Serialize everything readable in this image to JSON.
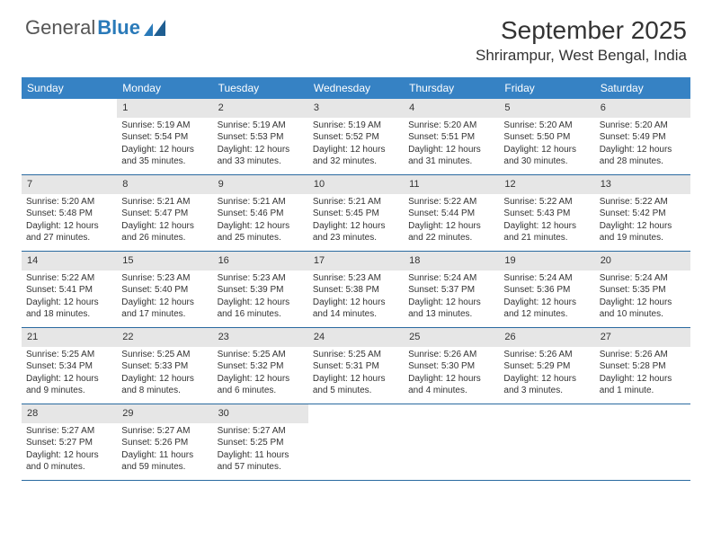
{
  "logo": {
    "text1": "General",
    "text2": "Blue"
  },
  "title": "September 2025",
  "location": "Shrirampur, West Bengal, India",
  "colors": {
    "header_bg": "#3682c4",
    "header_text": "#ffffff",
    "daynum_bg": "#e6e6e6",
    "border": "#2a6aa0",
    "text": "#333333",
    "logo_blue": "#2a7ab9"
  },
  "typography": {
    "title_fontsize": 28,
    "location_fontsize": 17,
    "dayhead_fontsize": 12,
    "daynum_fontsize": 11,
    "detail_fontsize": 10
  },
  "day_labels": [
    "Sunday",
    "Monday",
    "Tuesday",
    "Wednesday",
    "Thursday",
    "Friday",
    "Saturday"
  ],
  "weeks": [
    [
      {
        "empty": true
      },
      {
        "n": "1",
        "sr": "Sunrise: 5:19 AM",
        "ss": "Sunset: 5:54 PM",
        "dl": "Daylight: 12 hours and 35 minutes."
      },
      {
        "n": "2",
        "sr": "Sunrise: 5:19 AM",
        "ss": "Sunset: 5:53 PM",
        "dl": "Daylight: 12 hours and 33 minutes."
      },
      {
        "n": "3",
        "sr": "Sunrise: 5:19 AM",
        "ss": "Sunset: 5:52 PM",
        "dl": "Daylight: 12 hours and 32 minutes."
      },
      {
        "n": "4",
        "sr": "Sunrise: 5:20 AM",
        "ss": "Sunset: 5:51 PM",
        "dl": "Daylight: 12 hours and 31 minutes."
      },
      {
        "n": "5",
        "sr": "Sunrise: 5:20 AM",
        "ss": "Sunset: 5:50 PM",
        "dl": "Daylight: 12 hours and 30 minutes."
      },
      {
        "n": "6",
        "sr": "Sunrise: 5:20 AM",
        "ss": "Sunset: 5:49 PM",
        "dl": "Daylight: 12 hours and 28 minutes."
      }
    ],
    [
      {
        "n": "7",
        "sr": "Sunrise: 5:20 AM",
        "ss": "Sunset: 5:48 PM",
        "dl": "Daylight: 12 hours and 27 minutes."
      },
      {
        "n": "8",
        "sr": "Sunrise: 5:21 AM",
        "ss": "Sunset: 5:47 PM",
        "dl": "Daylight: 12 hours and 26 minutes."
      },
      {
        "n": "9",
        "sr": "Sunrise: 5:21 AM",
        "ss": "Sunset: 5:46 PM",
        "dl": "Daylight: 12 hours and 25 minutes."
      },
      {
        "n": "10",
        "sr": "Sunrise: 5:21 AM",
        "ss": "Sunset: 5:45 PM",
        "dl": "Daylight: 12 hours and 23 minutes."
      },
      {
        "n": "11",
        "sr": "Sunrise: 5:22 AM",
        "ss": "Sunset: 5:44 PM",
        "dl": "Daylight: 12 hours and 22 minutes."
      },
      {
        "n": "12",
        "sr": "Sunrise: 5:22 AM",
        "ss": "Sunset: 5:43 PM",
        "dl": "Daylight: 12 hours and 21 minutes."
      },
      {
        "n": "13",
        "sr": "Sunrise: 5:22 AM",
        "ss": "Sunset: 5:42 PM",
        "dl": "Daylight: 12 hours and 19 minutes."
      }
    ],
    [
      {
        "n": "14",
        "sr": "Sunrise: 5:22 AM",
        "ss": "Sunset: 5:41 PM",
        "dl": "Daylight: 12 hours and 18 minutes."
      },
      {
        "n": "15",
        "sr": "Sunrise: 5:23 AM",
        "ss": "Sunset: 5:40 PM",
        "dl": "Daylight: 12 hours and 17 minutes."
      },
      {
        "n": "16",
        "sr": "Sunrise: 5:23 AM",
        "ss": "Sunset: 5:39 PM",
        "dl": "Daylight: 12 hours and 16 minutes."
      },
      {
        "n": "17",
        "sr": "Sunrise: 5:23 AM",
        "ss": "Sunset: 5:38 PM",
        "dl": "Daylight: 12 hours and 14 minutes."
      },
      {
        "n": "18",
        "sr": "Sunrise: 5:24 AM",
        "ss": "Sunset: 5:37 PM",
        "dl": "Daylight: 12 hours and 13 minutes."
      },
      {
        "n": "19",
        "sr": "Sunrise: 5:24 AM",
        "ss": "Sunset: 5:36 PM",
        "dl": "Daylight: 12 hours and 12 minutes."
      },
      {
        "n": "20",
        "sr": "Sunrise: 5:24 AM",
        "ss": "Sunset: 5:35 PM",
        "dl": "Daylight: 12 hours and 10 minutes."
      }
    ],
    [
      {
        "n": "21",
        "sr": "Sunrise: 5:25 AM",
        "ss": "Sunset: 5:34 PM",
        "dl": "Daylight: 12 hours and 9 minutes."
      },
      {
        "n": "22",
        "sr": "Sunrise: 5:25 AM",
        "ss": "Sunset: 5:33 PM",
        "dl": "Daylight: 12 hours and 8 minutes."
      },
      {
        "n": "23",
        "sr": "Sunrise: 5:25 AM",
        "ss": "Sunset: 5:32 PM",
        "dl": "Daylight: 12 hours and 6 minutes."
      },
      {
        "n": "24",
        "sr": "Sunrise: 5:25 AM",
        "ss": "Sunset: 5:31 PM",
        "dl": "Daylight: 12 hours and 5 minutes."
      },
      {
        "n": "25",
        "sr": "Sunrise: 5:26 AM",
        "ss": "Sunset: 5:30 PM",
        "dl": "Daylight: 12 hours and 4 minutes."
      },
      {
        "n": "26",
        "sr": "Sunrise: 5:26 AM",
        "ss": "Sunset: 5:29 PM",
        "dl": "Daylight: 12 hours and 3 minutes."
      },
      {
        "n": "27",
        "sr": "Sunrise: 5:26 AM",
        "ss": "Sunset: 5:28 PM",
        "dl": "Daylight: 12 hours and 1 minute."
      }
    ],
    [
      {
        "n": "28",
        "sr": "Sunrise: 5:27 AM",
        "ss": "Sunset: 5:27 PM",
        "dl": "Daylight: 12 hours and 0 minutes."
      },
      {
        "n": "29",
        "sr": "Sunrise: 5:27 AM",
        "ss": "Sunset: 5:26 PM",
        "dl": "Daylight: 11 hours and 59 minutes."
      },
      {
        "n": "30",
        "sr": "Sunrise: 5:27 AM",
        "ss": "Sunset: 5:25 PM",
        "dl": "Daylight: 11 hours and 57 minutes."
      },
      {
        "empty": true
      },
      {
        "empty": true
      },
      {
        "empty": true
      },
      {
        "empty": true
      }
    ]
  ]
}
